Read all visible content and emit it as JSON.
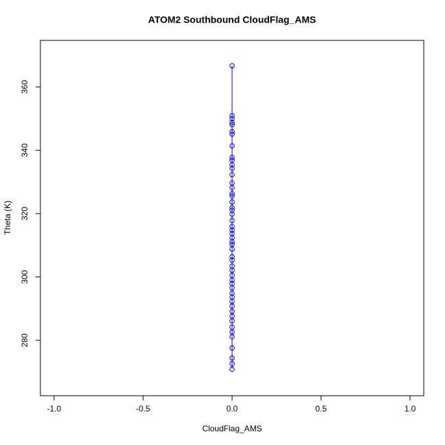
{
  "chart_data": {
    "type": "scatter",
    "title": "ATOM2 Southbound CloudFlag_AMS",
    "x_label": "CloudFlag_AMS",
    "y_label": "Theta (K)",
    "color": "#0000ff",
    "connect": true,
    "x": [
      0,
      0,
      0,
      0,
      0,
      0,
      0,
      0,
      0,
      0,
      0,
      0,
      0,
      0,
      0,
      0,
      0,
      0,
      0,
      0,
      0,
      0,
      0,
      0,
      0,
      0,
      0,
      0,
      0,
      0,
      0,
      0,
      0,
      0,
      0,
      0,
      0,
      0,
      0,
      0,
      0,
      0,
      0,
      0,
      0,
      0,
      0,
      0,
      0,
      0,
      0
    ],
    "y": [
      366.7,
      350.9,
      350,
      348.8,
      348.1,
      345.9,
      345.1,
      341.4,
      337.7,
      336.9,
      335.4,
      334.3,
      332.3,
      329.7,
      328.2,
      326.3,
      325.6,
      323.7,
      321.9,
      321.1,
      319.8,
      317.8,
      315.9,
      314.8,
      313.7,
      312.4,
      311.1,
      310.3,
      308.8,
      306.4,
      305.3,
      303.4,
      302.1,
      300.5,
      299,
      297.9,
      296.6,
      294.9,
      293.6,
      292.3,
      290.8,
      289.1,
      287.6,
      286.1,
      284.1,
      282.6,
      281.1,
      277.6,
      274.4,
      272.6,
      270.9
    ],
    "xlim": [
      -1.077,
      1.077
    ],
    "ylim": [
      262.5,
      374.7
    ],
    "xticks": [
      {
        "value": -1,
        "label": "-1.0"
      },
      {
        "value": -0.5,
        "label": "-0.5"
      },
      {
        "value": 0,
        "label": "0.0"
      },
      {
        "value": 0.5,
        "label": "0.5"
      },
      {
        "value": 1,
        "label": "1.0"
      }
    ],
    "yticks": [
      280,
      300,
      320,
      340,
      360
    ]
  }
}
